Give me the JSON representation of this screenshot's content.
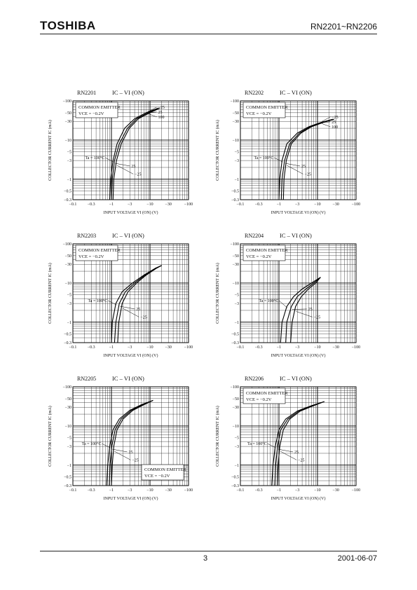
{
  "header": {
    "logo": "TOSHIBA",
    "part_range": "RN2201~RN2206"
  },
  "footer": {
    "page": "3",
    "date": "2001-06-07"
  },
  "chart_common": {
    "title": "IC – VI (ON)",
    "xlabel": "INPUT VOLTAGE  VI (ON)  (V)",
    "ylabel": "COLLECTOR CURRENT  IC  (mA)",
    "condition_line1": "COMMON EMITTER",
    "condition_line2": "VCE = −0.2V",
    "xticks": [
      "−0.1",
      "−0.3",
      "−1",
      "−3",
      "−10",
      "−30",
      "−100"
    ],
    "yticks": [
      "−100",
      "−50",
      "−30",
      "−10",
      "−5",
      "−3",
      "−1",
      "−0.5",
      "−0.3"
    ]
  },
  "chart_data": [
    {
      "type": "line",
      "name": "RN2201",
      "x_scale": "log",
      "y_scale": "log",
      "xlim": [
        -0.1,
        -100
      ],
      "ylim": [
        -0.3,
        -100
      ],
      "grid": true,
      "legend": "top-left",
      "series": [
        {
          "name": "Ta=100°C",
          "x": [
            -0.9,
            -0.95,
            -1.1,
            -1.4,
            -2.2,
            -4,
            -8,
            -16
          ],
          "y": [
            -0.3,
            -1,
            -3,
            -8,
            -20,
            -35,
            -50,
            -65
          ]
        },
        {
          "name": "25",
          "x": [
            -1.0,
            -1.05,
            -1.2,
            -1.6,
            -2.6,
            -4.5,
            -9,
            -17
          ],
          "y": [
            -0.3,
            -1,
            -3,
            -8,
            -20,
            -35,
            -50,
            -65
          ]
        },
        {
          "name": "−25",
          "x": [
            -1.1,
            -1.15,
            -1.35,
            -1.8,
            -2.9,
            -5,
            -10,
            -18
          ],
          "y": [
            -0.3,
            -1,
            -3,
            -8,
            -20,
            -35,
            -50,
            -65
          ]
        }
      ],
      "labels_high": [
        "−25",
        "25",
        "100"
      ],
      "labels_low": [
        "Ta = 100°C",
        "25",
        "−25"
      ]
    },
    {
      "type": "line",
      "name": "RN2202",
      "x_scale": "log",
      "y_scale": "log",
      "xlim": [
        -0.1,
        -100
      ],
      "ylim": [
        -0.3,
        -100
      ],
      "grid": true,
      "legend": "top-left",
      "series": [
        {
          "name": "Ta=100°C",
          "x": [
            -1.0,
            -1.05,
            -1.2,
            -1.6,
            -3,
            -6,
            -12,
            -25
          ],
          "y": [
            -0.3,
            -1,
            -3,
            -8,
            -15,
            -22,
            -28,
            -34
          ]
        },
        {
          "name": "25",
          "x": [
            -1.15,
            -1.2,
            -1.4,
            -1.9,
            -3.4,
            -6.5,
            -13,
            -26
          ],
          "y": [
            -0.3,
            -1,
            -3,
            -8,
            -15,
            -22,
            -28,
            -34
          ]
        },
        {
          "name": "−25",
          "x": [
            -1.3,
            -1.35,
            -1.55,
            -2.1,
            -3.7,
            -7,
            -14,
            -27
          ],
          "y": [
            -0.3,
            -1,
            -3,
            -8,
            -15,
            -22,
            -28,
            -34
          ]
        }
      ],
      "labels_high": [
        "−25",
        "25",
        "100"
      ],
      "labels_low": [
        "Ta = 100°C",
        "25",
        "−25"
      ]
    },
    {
      "type": "line",
      "name": "RN2203",
      "x_scale": "log",
      "y_scale": "log",
      "xlim": [
        -0.1,
        -100
      ],
      "ylim": [
        -0.3,
        -100
      ],
      "grid": true,
      "legend": "top-left",
      "series": [
        {
          "name": "Ta=100°C",
          "x": [
            -1.0,
            -1.05,
            -1.3,
            -1.9,
            -3.5,
            -7,
            -14,
            -20
          ],
          "y": [
            -0.3,
            -1,
            -3,
            -6,
            -10,
            -16,
            -24,
            -28
          ]
        },
        {
          "name": "25",
          "x": [
            -1.2,
            -1.3,
            -1.6,
            -2.3,
            -4,
            -7.5,
            -14.5,
            -20
          ],
          "y": [
            -0.3,
            -1,
            -3,
            -6,
            -10,
            -16,
            -24,
            -28
          ]
        },
        {
          "name": "−25",
          "x": [
            -1.45,
            -1.55,
            -1.9,
            -2.7,
            -4.5,
            -8,
            -15,
            -20
          ],
          "y": [
            -0.3,
            -1,
            -3,
            -6,
            -10,
            -16,
            -24,
            -28
          ]
        }
      ],
      "labels_low": [
        "Ta = 100°C",
        "25",
        "−25"
      ]
    },
    {
      "type": "line",
      "name": "RN2204",
      "x_scale": "log",
      "y_scale": "log",
      "xlim": [
        -0.1,
        -100
      ],
      "ylim": [
        -0.3,
        -100
      ],
      "grid": true,
      "legend": "top-left",
      "series": [
        {
          "name": "Ta=100°C",
          "x": [
            -1.1,
            -1.2,
            -1.6,
            -2.4,
            -4,
            -7,
            -12
          ],
          "y": [
            -0.3,
            -1,
            -2.5,
            -4.5,
            -7,
            -10,
            -14
          ]
        },
        {
          "name": "25",
          "x": [
            -1.5,
            -1.6,
            -2.1,
            -3,
            -5,
            -8,
            -12
          ],
          "y": [
            -0.3,
            -1,
            -2.5,
            -4.5,
            -7,
            -10,
            -14
          ]
        },
        {
          "name": "−25",
          "x": [
            -2.0,
            -2.2,
            -2.7,
            -3.8,
            -5.8,
            -9,
            -12
          ],
          "y": [
            -0.3,
            -1,
            -2.5,
            -4.5,
            -7,
            -10,
            -14
          ]
        }
      ],
      "labels_low": [
        "Ta = 100°C",
        "25",
        "−25"
      ]
    },
    {
      "type": "line",
      "name": "RN2205",
      "x_scale": "log",
      "y_scale": "log",
      "xlim": [
        -0.1,
        -100
      ],
      "ylim": [
        -0.3,
        -100
      ],
      "grid": true,
      "legend": "bottom-right",
      "series": [
        {
          "name": "Ta=100°C",
          "x": [
            -0.75,
            -0.8,
            -0.9,
            -1.1,
            -1.6,
            -3,
            -6,
            -12
          ],
          "y": [
            -0.3,
            -1,
            -3,
            -8,
            -15,
            -25,
            -35,
            -45
          ]
        },
        {
          "name": "25",
          "x": [
            -0.88,
            -0.92,
            -1.02,
            -1.25,
            -1.8,
            -3.3,
            -6.5,
            -12
          ],
          "y": [
            -0.3,
            -1,
            -3,
            -8,
            -15,
            -25,
            -35,
            -45
          ]
        },
        {
          "name": "−25",
          "x": [
            -1.0,
            -1.05,
            -1.15,
            -1.4,
            -2.0,
            -3.6,
            -7,
            -12
          ],
          "y": [
            -0.3,
            -1,
            -3,
            -8,
            -15,
            -25,
            -35,
            -45
          ]
        }
      ],
      "labels_low": [
        "Ta = 100°C",
        "25",
        "−25"
      ]
    },
    {
      "type": "line",
      "name": "RN2206",
      "x_scale": "log",
      "y_scale": "log",
      "xlim": [
        -0.1,
        -100
      ],
      "ylim": [
        -0.3,
        -100
      ],
      "grid": true,
      "legend": "top-left",
      "series": [
        {
          "name": "Ta=100°C",
          "x": [
            -0.65,
            -0.7,
            -0.8,
            -1.0,
            -1.5,
            -3,
            -7,
            -15
          ],
          "y": [
            -0.3,
            -1,
            -3,
            -8,
            -15,
            -24,
            -33,
            -42
          ]
        },
        {
          "name": "25",
          "x": [
            -0.78,
            -0.82,
            -0.92,
            -1.12,
            -1.7,
            -3.3,
            -7.5,
            -15
          ],
          "y": [
            -0.3,
            -1,
            -3,
            -8,
            -15,
            -24,
            -33,
            -42
          ]
        },
        {
          "name": "−25",
          "x": [
            -0.9,
            -0.95,
            -1.05,
            -1.3,
            -1.9,
            -3.6,
            -8,
            -15
          ],
          "y": [
            -0.3,
            -1,
            -3,
            -8,
            -15,
            -24,
            -33,
            -42
          ]
        }
      ],
      "labels_low": [
        "Ta = 100°C",
        "25",
        "−25"
      ]
    }
  ]
}
